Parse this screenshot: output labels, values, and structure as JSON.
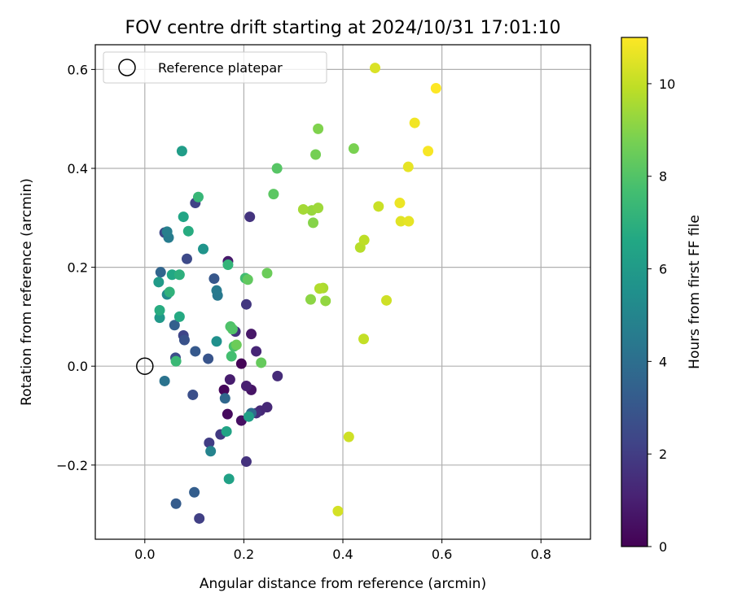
{
  "chart_data": {
    "type": "scatter",
    "title": "FOV centre drift starting at 2024/10/31 17:01:10",
    "xlabel": "Angular distance from reference (arcmin)",
    "ylabel": "Rotation from reference (arcmin)",
    "xlim": [
      -0.1,
      0.9
    ],
    "ylim": [
      -0.35,
      0.65
    ],
    "xticks": [
      0.0,
      0.2,
      0.4,
      0.6,
      0.8
    ],
    "xtick_labels": [
      "0.0",
      "0.2",
      "0.4",
      "0.6",
      "0.8"
    ],
    "yticks": [
      -0.2,
      0.0,
      0.2,
      0.4,
      0.6
    ],
    "ytick_labels": [
      "−0.2",
      "0.0",
      "0.2",
      "0.4",
      "0.6"
    ],
    "grid": true,
    "legend": {
      "position": "upper-left",
      "entries": [
        "Reference platepar"
      ]
    },
    "colorbar": {
      "label": "Hours from first FF file",
      "range": [
        0,
        11
      ],
      "ticks": [
        0,
        2,
        4,
        6,
        8,
        10
      ],
      "tick_labels": [
        "0",
        "2",
        "4",
        "6",
        "8",
        "10"
      ],
      "colormap": "viridis"
    },
    "reference_point": {
      "x": 0.0,
      "y": 0.0
    },
    "points": [
      {
        "x": 0.195,
        "y": 0.005,
        "t": 0.1
      },
      {
        "x": 0.16,
        "y": -0.048,
        "t": 0.2
      },
      {
        "x": 0.167,
        "y": -0.097,
        "t": 0.3
      },
      {
        "x": 0.195,
        "y": -0.11,
        "t": 0.5
      },
      {
        "x": 0.215,
        "y": -0.048,
        "t": 0.6
      },
      {
        "x": 0.215,
        "y": 0.065,
        "t": 0.7
      },
      {
        "x": 0.168,
        "y": 0.212,
        "t": 0.8
      },
      {
        "x": 0.172,
        "y": -0.027,
        "t": 0.9
      },
      {
        "x": 0.205,
        "y": -0.04,
        "t": 1.0
      },
      {
        "x": 0.225,
        "y": 0.03,
        "t": 1.2
      },
      {
        "x": 0.233,
        "y": -0.09,
        "t": 1.3
      },
      {
        "x": 0.247,
        "y": -0.083,
        "t": 1.3
      },
      {
        "x": 0.268,
        "y": -0.02,
        "t": 1.4
      },
      {
        "x": 0.225,
        "y": -0.095,
        "t": 1.5
      },
      {
        "x": 0.205,
        "y": -0.193,
        "t": 1.6
      },
      {
        "x": 0.183,
        "y": 0.07,
        "t": 1.6
      },
      {
        "x": 0.212,
        "y": 0.302,
        "t": 1.7
      },
      {
        "x": 0.205,
        "y": 0.125,
        "t": 1.8
      },
      {
        "x": 0.153,
        "y": -0.138,
        "t": 1.9
      },
      {
        "x": 0.13,
        "y": -0.155,
        "t": 2.0
      },
      {
        "x": 0.11,
        "y": -0.308,
        "t": 2.1
      },
      {
        "x": 0.102,
        "y": 0.33,
        "t": 2.2
      },
      {
        "x": 0.078,
        "y": 0.062,
        "t": 2.3
      },
      {
        "x": 0.04,
        "y": 0.27,
        "t": 2.4
      },
      {
        "x": 0.085,
        "y": 0.217,
        "t": 2.5
      },
      {
        "x": 0.062,
        "y": 0.017,
        "t": 2.6
      },
      {
        "x": 0.097,
        "y": -0.058,
        "t": 2.7
      },
      {
        "x": 0.08,
        "y": 0.053,
        "t": 2.8
      },
      {
        "x": 0.128,
        "y": 0.015,
        "t": 2.9
      },
      {
        "x": 0.14,
        "y": 0.177,
        "t": 3.0
      },
      {
        "x": 0.102,
        "y": 0.03,
        "t": 3.1
      },
      {
        "x": 0.063,
        "y": -0.278,
        "t": 3.2
      },
      {
        "x": 0.1,
        "y": -0.255,
        "t": 3.3
      },
      {
        "x": 0.06,
        "y": 0.083,
        "t": 3.4
      },
      {
        "x": 0.032,
        "y": 0.19,
        "t": 3.6
      },
      {
        "x": 0.162,
        "y": -0.065,
        "t": 3.7
      },
      {
        "x": 0.215,
        "y": -0.095,
        "t": 3.9
      },
      {
        "x": 0.04,
        "y": -0.03,
        "t": 4.2
      },
      {
        "x": 0.147,
        "y": 0.143,
        "t": 4.4
      },
      {
        "x": 0.145,
        "y": 0.153,
        "t": 4.5
      },
      {
        "x": 0.048,
        "y": 0.26,
        "t": 4.6
      },
      {
        "x": 0.045,
        "y": 0.272,
        "t": 4.7
      },
      {
        "x": 0.133,
        "y": -0.172,
        "t": 4.9
      },
      {
        "x": 0.045,
        "y": 0.145,
        "t": 5.2
      },
      {
        "x": 0.145,
        "y": 0.05,
        "t": 5.5
      },
      {
        "x": 0.118,
        "y": 0.237,
        "t": 5.7
      },
      {
        "x": 0.03,
        "y": 0.098,
        "t": 5.9
      },
      {
        "x": 0.028,
        "y": 0.17,
        "t": 6.0
      },
      {
        "x": 0.075,
        "y": 0.435,
        "t": 6.1
      },
      {
        "x": 0.21,
        "y": -0.102,
        "t": 6.2
      },
      {
        "x": 0.17,
        "y": -0.228,
        "t": 6.3
      },
      {
        "x": 0.165,
        "y": -0.132,
        "t": 6.4
      },
      {
        "x": 0.078,
        "y": 0.302,
        "t": 6.5
      },
      {
        "x": 0.055,
        "y": 0.185,
        "t": 6.6
      },
      {
        "x": 0.07,
        "y": 0.1,
        "t": 6.7
      },
      {
        "x": 0.088,
        "y": 0.273,
        "t": 6.8
      },
      {
        "x": 0.03,
        "y": 0.113,
        "t": 6.8
      },
      {
        "x": 0.07,
        "y": 0.185,
        "t": 7.0
      },
      {
        "x": 0.05,
        "y": 0.15,
        "t": 7.1
      },
      {
        "x": 0.168,
        "y": 0.205,
        "t": 7.2
      },
      {
        "x": 0.108,
        "y": 0.342,
        "t": 7.3
      },
      {
        "x": 0.063,
        "y": 0.01,
        "t": 7.4
      },
      {
        "x": 0.203,
        "y": 0.178,
        "t": 7.6
      },
      {
        "x": 0.175,
        "y": 0.02,
        "t": 7.7
      },
      {
        "x": 0.18,
        "y": 0.04,
        "t": 7.8
      },
      {
        "x": 0.173,
        "y": 0.08,
        "t": 7.9
      },
      {
        "x": 0.177,
        "y": 0.075,
        "t": 8.0
      },
      {
        "x": 0.267,
        "y": 0.4,
        "t": 8.1
      },
      {
        "x": 0.26,
        "y": 0.348,
        "t": 8.2
      },
      {
        "x": 0.208,
        "y": 0.175,
        "t": 8.3
      },
      {
        "x": 0.235,
        "y": 0.007,
        "t": 8.4
      },
      {
        "x": 0.185,
        "y": 0.043,
        "t": 8.5
      },
      {
        "x": 0.247,
        "y": 0.188,
        "t": 8.5
      },
      {
        "x": 0.345,
        "y": 0.428,
        "t": 8.7
      },
      {
        "x": 0.422,
        "y": 0.44,
        "t": 8.8
      },
      {
        "x": 0.35,
        "y": 0.48,
        "t": 8.9
      },
      {
        "x": 0.34,
        "y": 0.29,
        "t": 9.0
      },
      {
        "x": 0.335,
        "y": 0.135,
        "t": 9.1
      },
      {
        "x": 0.365,
        "y": 0.132,
        "t": 9.2
      },
      {
        "x": 0.337,
        "y": 0.315,
        "t": 9.3
      },
      {
        "x": 0.35,
        "y": 0.32,
        "t": 9.4
      },
      {
        "x": 0.32,
        "y": 0.317,
        "t": 9.5
      },
      {
        "x": 0.36,
        "y": 0.158,
        "t": 9.6
      },
      {
        "x": 0.353,
        "y": 0.157,
        "t": 9.7
      },
      {
        "x": 0.435,
        "y": 0.24,
        "t": 9.8
      },
      {
        "x": 0.443,
        "y": 0.255,
        "t": 9.9
      },
      {
        "x": 0.442,
        "y": 0.055,
        "t": 10.0
      },
      {
        "x": 0.472,
        "y": 0.323,
        "t": 10.1
      },
      {
        "x": 0.488,
        "y": 0.133,
        "t": 10.2
      },
      {
        "x": 0.412,
        "y": -0.143,
        "t": 10.2
      },
      {
        "x": 0.39,
        "y": -0.293,
        "t": 10.3
      },
      {
        "x": 0.465,
        "y": 0.603,
        "t": 10.4
      },
      {
        "x": 0.517,
        "y": 0.293,
        "t": 10.5
      },
      {
        "x": 0.533,
        "y": 0.293,
        "t": 10.6
      },
      {
        "x": 0.532,
        "y": 0.403,
        "t": 10.6
      },
      {
        "x": 0.515,
        "y": 0.33,
        "t": 10.7
      },
      {
        "x": 0.545,
        "y": 0.492,
        "t": 10.8
      },
      {
        "x": 0.572,
        "y": 0.435,
        "t": 10.9
      },
      {
        "x": 0.588,
        "y": 0.562,
        "t": 11.0
      }
    ]
  }
}
